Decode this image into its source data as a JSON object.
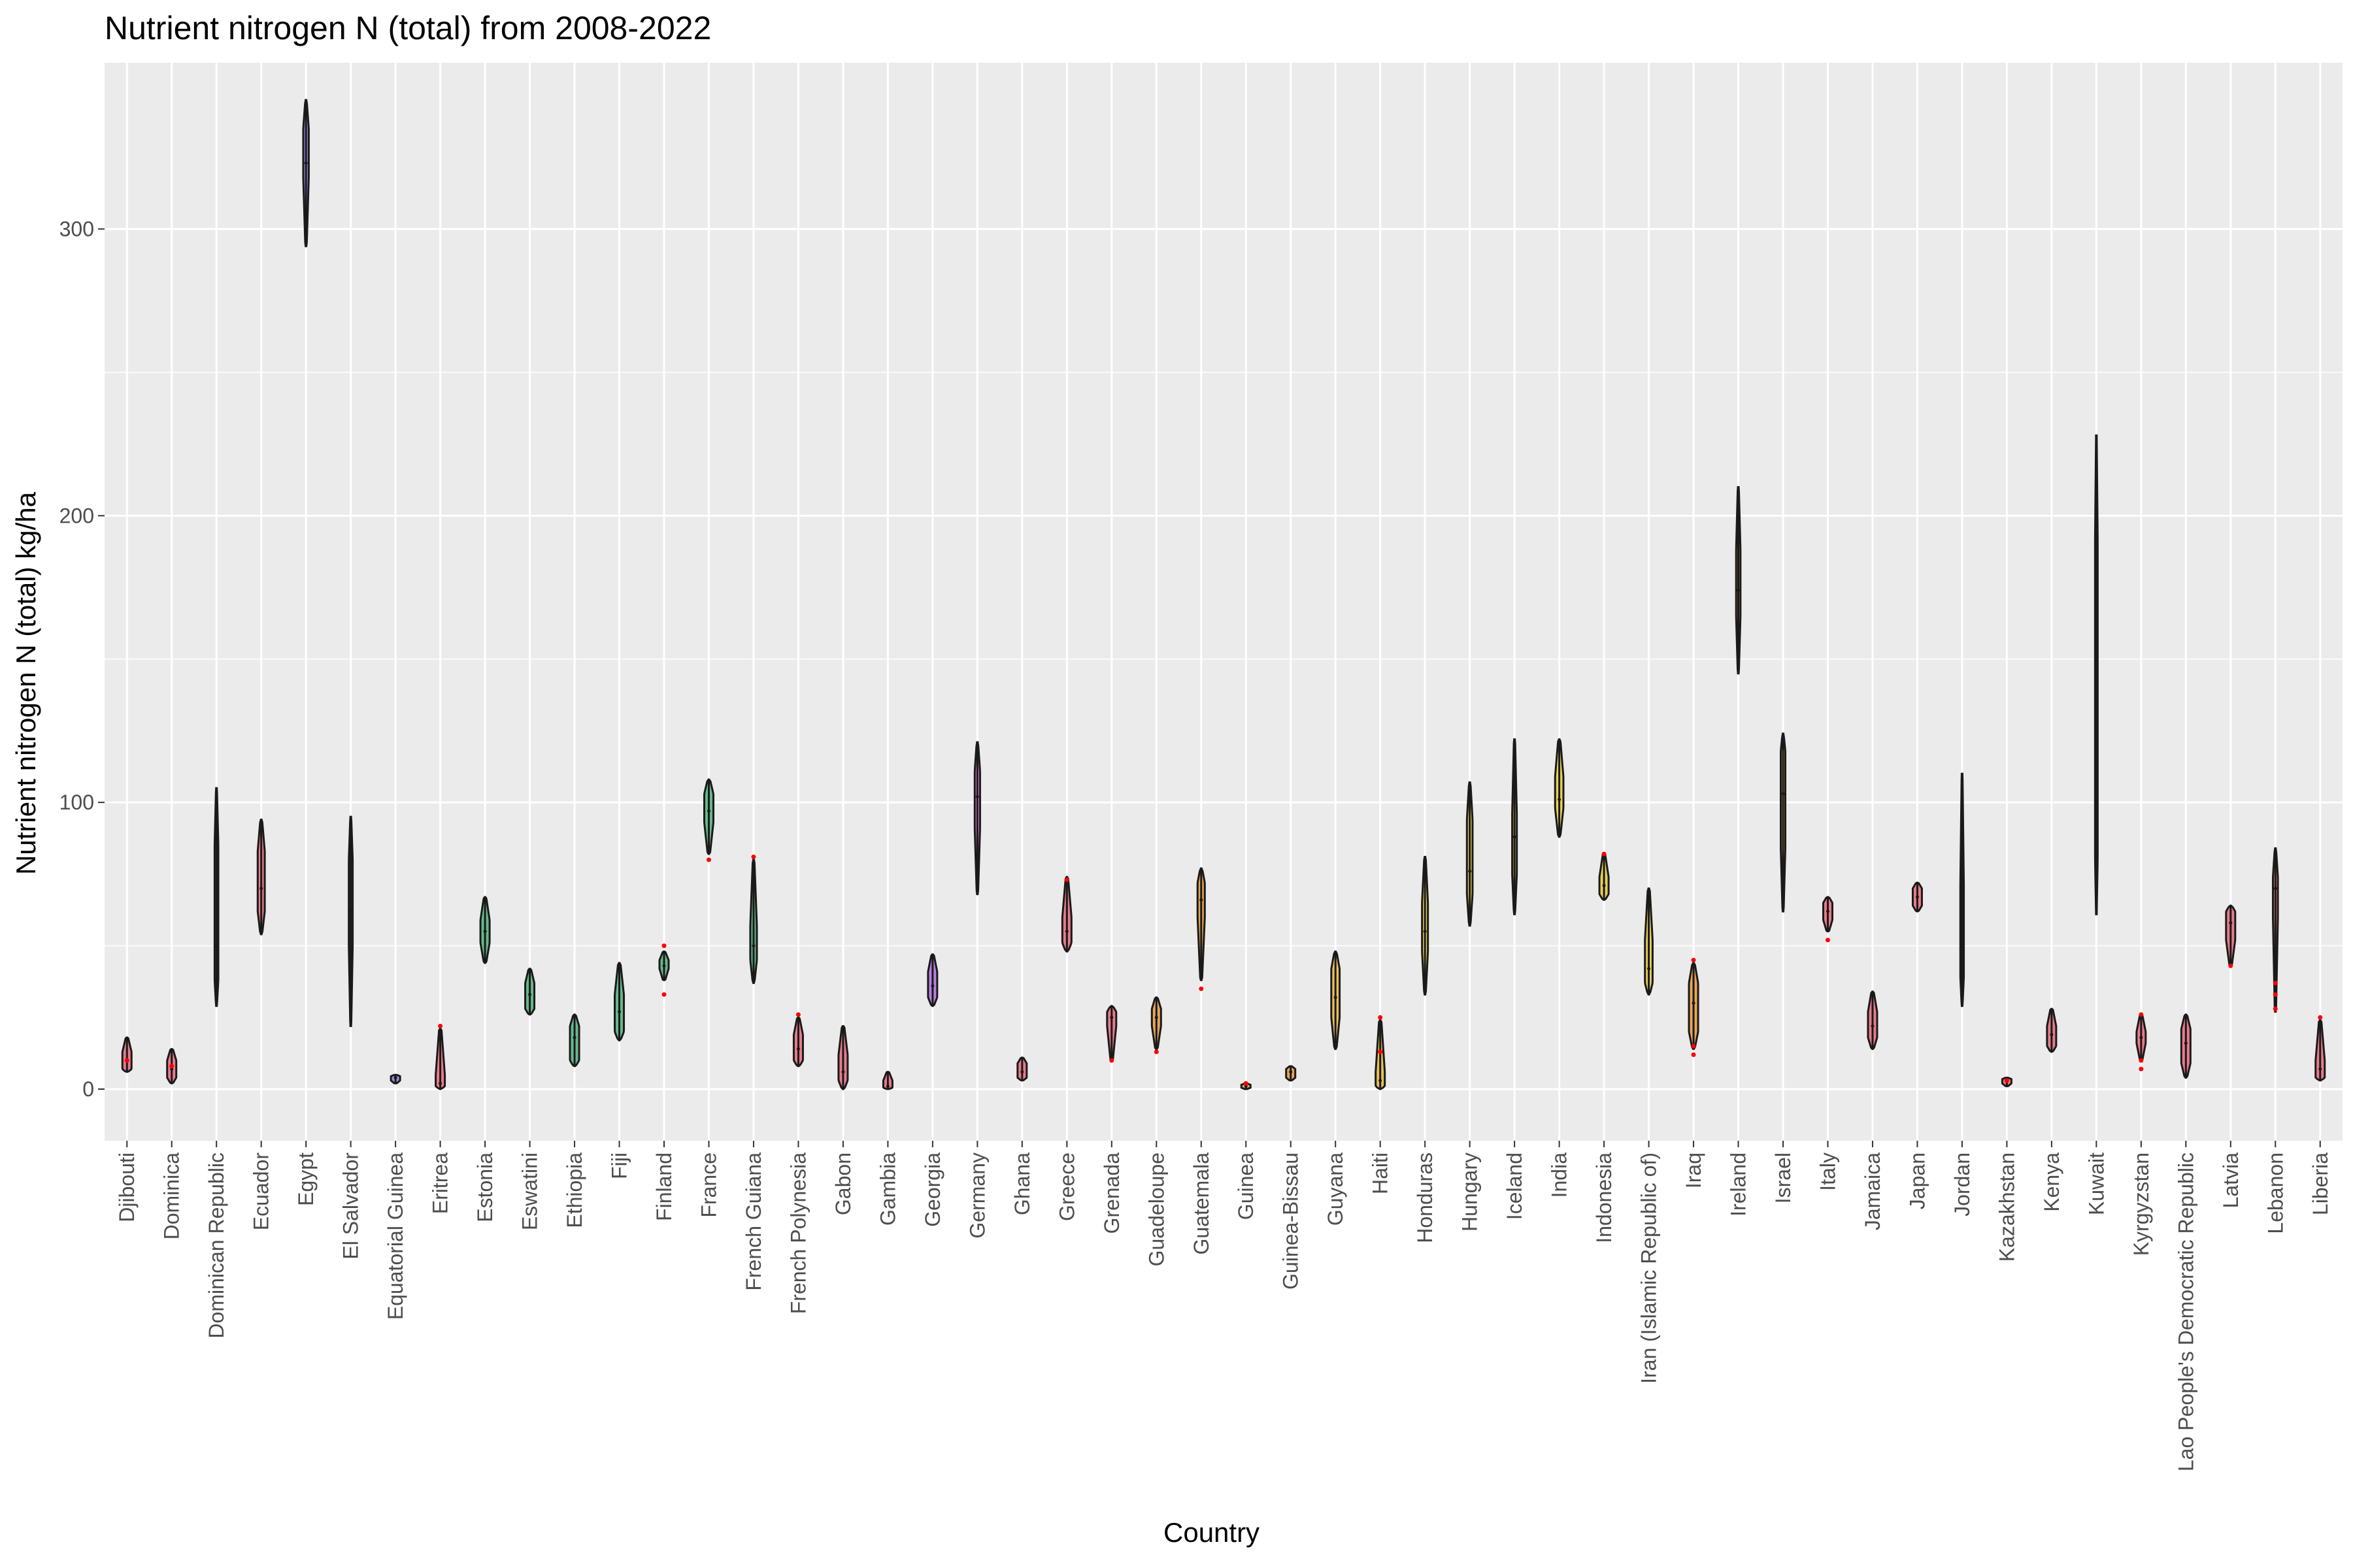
{
  "chart_data": {
    "type": "violin",
    "title": "Nutrient nitrogen N (total) from 2008-2022",
    "xlabel": "Country",
    "ylabel": "Nutrient nitrogen N (total) kg/ha",
    "ylim": [
      -18,
      358
    ],
    "yticks": [
      0,
      100,
      200,
      300
    ],
    "grid": true,
    "legend": "none",
    "outlier_color": "#ff0000",
    "background_color": "#ebebeb",
    "grid_color": "#ffffff",
    "categories": [
      "Djibouti",
      "Dominica",
      "Dominican Republic",
      "Ecuador",
      "Egypt",
      "El Salvador",
      "Equatorial Guinea",
      "Eritrea",
      "Estonia",
      "Eswatini",
      "Ethiopia",
      "Fiji",
      "Finland",
      "France",
      "French Guiana",
      "French Polynesia",
      "Gabon",
      "Gambia",
      "Georgia",
      "Germany",
      "Ghana",
      "Greece",
      "Grenada",
      "Guadeloupe",
      "Guatemala",
      "Guinea",
      "Guinea-Bissau",
      "Guyana",
      "Haiti",
      "Honduras",
      "Hungary",
      "Iceland",
      "India",
      "Indonesia",
      "Iran (Islamic Republic of)",
      "Iraq",
      "Ireland",
      "Israel",
      "Italy",
      "Jamaica",
      "Japan",
      "Jordan",
      "Kazakhstan",
      "Kenya",
      "Kuwait",
      "Kyrgyzstan",
      "Lao People's Democratic Republic",
      "Latvia",
      "Lebanon",
      "Liberia"
    ],
    "series": [
      {
        "country": "Djibouti",
        "color": "#e8697a",
        "min": 6,
        "q1": 7,
        "median": 10,
        "q3": 13,
        "max": 18,
        "outliers": [
          10
        ]
      },
      {
        "country": "Dominica",
        "color": "#e8697a",
        "min": 2,
        "q1": 4,
        "median": 7,
        "q3": 10,
        "max": 14,
        "outliers": [
          8
        ]
      },
      {
        "country": "Dominican Republic",
        "color": "#e8697a",
        "min": 29,
        "q1": 38,
        "median": 50,
        "q3": 85,
        "max": 105,
        "outliers": []
      },
      {
        "country": "Ecuador",
        "color": "#e8697a",
        "min": 54,
        "q1": 62,
        "median": 70,
        "q3": 83,
        "max": 94,
        "outliers": []
      },
      {
        "country": "Egypt",
        "color": "#8c7ce0",
        "min": 294,
        "q1": 318,
        "median": 323,
        "q3": 335,
        "max": 345,
        "outliers": []
      },
      {
        "country": "El Salvador",
        "color": "#8c7ce0",
        "min": 22,
        "q1": 50,
        "median": 62,
        "q3": 80,
        "max": 95,
        "outliers": []
      },
      {
        "country": "Equatorial Guinea",
        "color": "#8c7ce0",
        "min": 2,
        "q1": 3,
        "median": 4,
        "q3": 4.5,
        "max": 5,
        "outliers": []
      },
      {
        "country": "Eritrea",
        "color": "#e8697a",
        "min": 0,
        "q1": 1,
        "median": 2,
        "q3": 5,
        "max": 21,
        "outliers": [
          22
        ]
      },
      {
        "country": "Estonia",
        "color": "#4fb07a",
        "min": 44,
        "q1": 51,
        "median": 55,
        "q3": 59,
        "max": 67,
        "outliers": []
      },
      {
        "country": "Eswatini",
        "color": "#4fb07a",
        "min": 26,
        "q1": 28,
        "median": 33,
        "q3": 37,
        "max": 42,
        "outliers": []
      },
      {
        "country": "Ethiopia",
        "color": "#4fb07a",
        "min": 8,
        "q1": 10,
        "median": 18,
        "q3": 22,
        "max": 26,
        "outliers": []
      },
      {
        "country": "Fiji",
        "color": "#4fb07a",
        "min": 17,
        "q1": 20,
        "median": 27,
        "q3": 33,
        "max": 44,
        "outliers": []
      },
      {
        "country": "Finland",
        "color": "#4fb07a",
        "min": 38,
        "q1": 42,
        "median": 43,
        "q3": 45,
        "max": 48,
        "outliers": [
          33,
          50
        ]
      },
      {
        "country": "France",
        "color": "#4fb07a",
        "min": 82,
        "q1": 93,
        "median": 97,
        "q3": 103,
        "max": 108,
        "outliers": [
          80
        ]
      },
      {
        "country": "French Guiana",
        "color": "#4fb07a",
        "min": 37,
        "q1": 45,
        "median": 50,
        "q3": 57,
        "max": 80,
        "outliers": [
          81
        ]
      },
      {
        "country": "French Polynesia",
        "color": "#e8697a",
        "min": 8,
        "q1": 10,
        "median": 14,
        "q3": 19,
        "max": 25,
        "outliers": [
          26
        ]
      },
      {
        "country": "Gabon",
        "color": "#e8697a",
        "min": 0,
        "q1": 3,
        "median": 6,
        "q3": 12,
        "max": 22,
        "outliers": []
      },
      {
        "country": "Gambia",
        "color": "#e8697a",
        "min": 0,
        "q1": 0.5,
        "median": 1,
        "q3": 3,
        "max": 6,
        "outliers": []
      },
      {
        "country": "Georgia",
        "color": "#b06fe0",
        "min": 29,
        "q1": 32,
        "median": 36,
        "q3": 41,
        "max": 47,
        "outliers": []
      },
      {
        "country": "Germany",
        "color": "#e070c8",
        "min": 68,
        "q1": 91,
        "median": 102,
        "q3": 111,
        "max": 121,
        "outliers": []
      },
      {
        "country": "Ghana",
        "color": "#e8697a",
        "min": 3,
        "q1": 4,
        "median": 6,
        "q3": 9,
        "max": 11,
        "outliers": []
      },
      {
        "country": "Greece",
        "color": "#e8697a",
        "min": 48,
        "q1": 51,
        "median": 55,
        "q3": 60,
        "max": 74,
        "outliers": [
          73
        ]
      },
      {
        "country": "Grenada",
        "color": "#e8697a",
        "min": 10,
        "q1": 22,
        "median": 25,
        "q3": 27,
        "max": 29,
        "outliers": [
          10
        ]
      },
      {
        "country": "Guadeloupe",
        "color": "#e89a3c",
        "min": 14,
        "q1": 22,
        "median": 25,
        "q3": 28,
        "max": 32,
        "outliers": [
          13
        ]
      },
      {
        "country": "Guatemala",
        "color": "#e89a3c",
        "min": 38,
        "q1": 60,
        "median": 66,
        "q3": 72,
        "max": 77,
        "outliers": [
          35
        ]
      },
      {
        "country": "Guinea",
        "color": "#e89a3c",
        "min": 0,
        "q1": 0.5,
        "median": 1,
        "q3": 1.5,
        "max": 2,
        "outliers": [
          2
        ]
      },
      {
        "country": "Guinea-Bissau",
        "color": "#e89a3c",
        "min": 3,
        "q1": 4,
        "median": 6,
        "q3": 7,
        "max": 8,
        "outliers": []
      },
      {
        "country": "Guyana",
        "color": "#e8b93c",
        "min": 14,
        "q1": 25,
        "median": 32,
        "q3": 42,
        "max": 48,
        "outliers": []
      },
      {
        "country": "Haiti",
        "color": "#e8b93c",
        "min": 0,
        "q1": 1,
        "median": 3,
        "q3": 6,
        "max": 24,
        "outliers": [
          25,
          13
        ]
      },
      {
        "country": "Honduras",
        "color": "#e8cc3c",
        "min": 33,
        "q1": 48,
        "median": 55,
        "q3": 65,
        "max": 81,
        "outliers": []
      },
      {
        "country": "Hungary",
        "color": "#e8cc3c",
        "min": 57,
        "q1": 68,
        "median": 76,
        "q3": 94,
        "max": 107,
        "outliers": []
      },
      {
        "country": "Iceland",
        "color": "#e8cc3c",
        "min": 61,
        "q1": 75,
        "median": 88,
        "q3": 96,
        "max": 122,
        "outliers": []
      },
      {
        "country": "India",
        "color": "#e8cc3c",
        "min": 88,
        "q1": 98,
        "median": 101,
        "q3": 109,
        "max": 122,
        "outliers": []
      },
      {
        "country": "Indonesia",
        "color": "#e8cc3c",
        "min": 66,
        "q1": 68,
        "median": 71,
        "q3": 74,
        "max": 82,
        "outliers": [
          82
        ]
      },
      {
        "country": "Iran (Islamic Republic of)",
        "color": "#e8cc3c",
        "min": 33,
        "q1": 37,
        "median": 42,
        "q3": 52,
        "max": 70,
        "outliers": []
      },
      {
        "country": "Iraq",
        "color": "#e89a3c",
        "min": 14,
        "q1": 20,
        "median": 30,
        "q3": 37,
        "max": 44,
        "outliers": [
          45,
          12,
          15
        ]
      },
      {
        "country": "Ireland",
        "color": "#e89a3c",
        "min": 145,
        "q1": 165,
        "median": 174,
        "q3": 188,
        "max": 210,
        "outliers": []
      },
      {
        "country": "Israel",
        "color": "#e89a3c",
        "min": 62,
        "q1": 84,
        "median": 103,
        "q3": 118,
        "max": 124,
        "outliers": []
      },
      {
        "country": "Italy",
        "color": "#e8697a",
        "min": 55,
        "q1": 59,
        "median": 62,
        "q3": 65,
        "max": 67,
        "outliers": [
          52
        ]
      },
      {
        "country": "Jamaica",
        "color": "#e8697a",
        "min": 14,
        "q1": 18,
        "median": 22,
        "q3": 27,
        "max": 34,
        "outliers": []
      },
      {
        "country": "Japan",
        "color": "#e8697a",
        "min": 62,
        "q1": 64,
        "median": 67,
        "q3": 70,
        "max": 72,
        "outliers": []
      },
      {
        "country": "Jordan",
        "color": "#e8697a",
        "min": 29,
        "q1": 39,
        "median": 53,
        "q3": 71,
        "max": 110,
        "outliers": []
      },
      {
        "country": "Kazakhstan",
        "color": "#e8697a",
        "min": 1,
        "q1": 2,
        "median": 3,
        "q3": 3.5,
        "max": 4,
        "outliers": [
          3
        ]
      },
      {
        "country": "Kenya",
        "color": "#e8697a",
        "min": 13,
        "q1": 15,
        "median": 19,
        "q3": 22,
        "max": 28,
        "outliers": []
      },
      {
        "country": "Kuwait",
        "color": "#e8697a",
        "min": 61,
        "q1": 80,
        "median": 170,
        "q3": 192,
        "max": 228,
        "outliers": []
      },
      {
        "country": "Kyrgyzstan",
        "color": "#e8697a",
        "min": 10,
        "q1": 16,
        "median": 18,
        "q3": 20,
        "max": 26,
        "outliers": [
          26,
          7,
          10
        ]
      },
      {
        "country": "Lao People's Democratic Republic",
        "color": "#e8697a",
        "min": 4,
        "q1": 9,
        "median": 16,
        "q3": 21,
        "max": 26,
        "outliers": []
      },
      {
        "country": "Latvia",
        "color": "#e8697a",
        "min": 43,
        "q1": 52,
        "median": 58,
        "q3": 62,
        "max": 64,
        "outliers": [
          43
        ]
      },
      {
        "country": "Lebanon",
        "color": "#e8697a",
        "min": 27,
        "q1": 60,
        "median": 70,
        "q3": 74,
        "max": 84,
        "outliers": [
          37,
          33,
          28
        ]
      },
      {
        "country": "Liberia",
        "color": "#e8697a",
        "min": 3,
        "q1": 4,
        "median": 7,
        "q3": 10,
        "max": 24,
        "outliers": [
          25
        ]
      }
    ]
  }
}
